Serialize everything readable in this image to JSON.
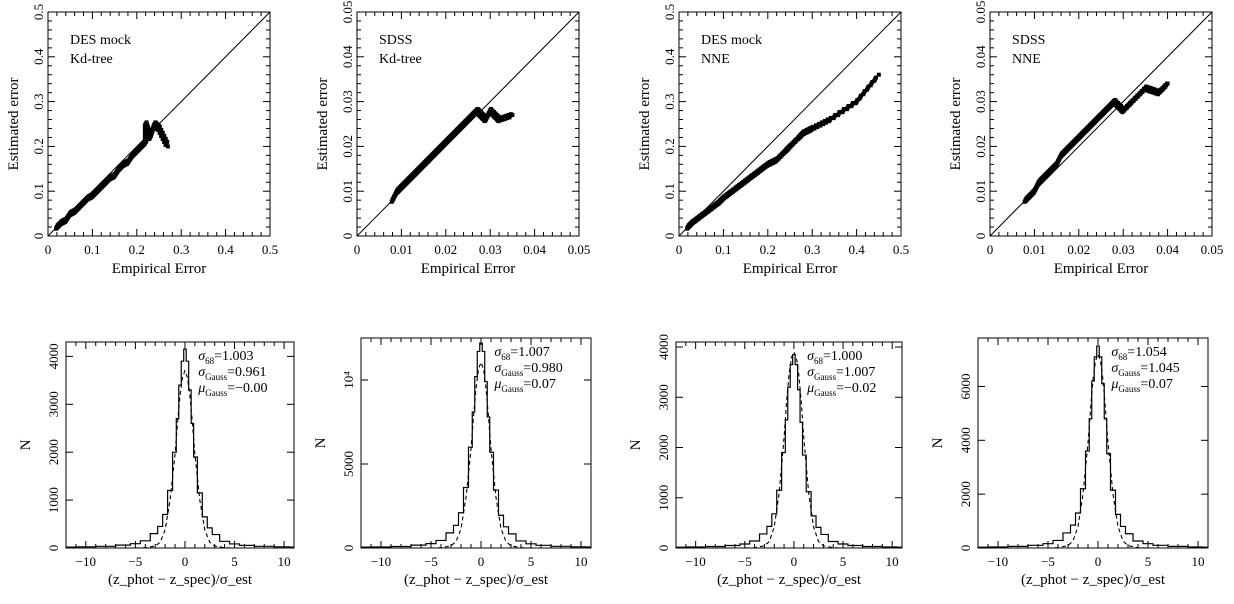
{
  "chart_data": [
    {
      "type": "scatter",
      "panel": "top-1",
      "annotation": [
        "DES mock",
        "Kd-tree"
      ],
      "xlabel": "Empirical Error",
      "ylabel": "Estimated error",
      "xlim": [
        0,
        0.5
      ],
      "ylim": [
        0,
        0.5
      ],
      "xticks": [
        "0",
        "0.1",
        "0.2",
        "0.3",
        "0.4",
        "0.5"
      ],
      "yticks": [
        "0",
        "0.1",
        "0.2",
        "0.3",
        "0.4",
        "0.5"
      ],
      "diagonal": true,
      "points": [
        [
          0.02,
          0.02
        ],
        [
          0.03,
          0.03
        ],
        [
          0.04,
          0.035
        ],
        [
          0.05,
          0.05
        ],
        [
          0.06,
          0.055
        ],
        [
          0.07,
          0.065
        ],
        [
          0.08,
          0.075
        ],
        [
          0.09,
          0.085
        ],
        [
          0.1,
          0.09
        ],
        [
          0.11,
          0.1
        ],
        [
          0.12,
          0.11
        ],
        [
          0.13,
          0.12
        ],
        [
          0.14,
          0.13
        ],
        [
          0.15,
          0.135
        ],
        [
          0.16,
          0.15
        ],
        [
          0.17,
          0.16
        ],
        [
          0.18,
          0.165
        ],
        [
          0.19,
          0.18
        ],
        [
          0.2,
          0.19
        ],
        [
          0.21,
          0.2
        ],
        [
          0.22,
          0.21
        ],
        [
          0.23,
          0.22
        ],
        [
          0.24,
          0.25
        ],
        [
          0.25,
          0.24
        ],
        [
          0.27,
          0.2
        ],
        [
          0.22,
          0.25
        ]
      ]
    },
    {
      "type": "scatter",
      "panel": "top-2",
      "annotation": [
        "SDSS",
        "Kd-tree"
      ],
      "xlabel": "Empirical Error",
      "ylabel": "Estimated error",
      "xlim": [
        0,
        0.05
      ],
      "ylim": [
        0,
        0.05
      ],
      "xticks": [
        "0",
        "0.01",
        "0.02",
        "0.03",
        "0.04",
        "0.05"
      ],
      "yticks": [
        "0",
        "0.01",
        "0.02",
        "0.03",
        "0.04",
        "0.05"
      ],
      "diagonal": true,
      "points": [
        [
          0.008,
          0.008
        ],
        [
          0.009,
          0.01
        ],
        [
          0.01,
          0.011
        ],
        [
          0.011,
          0.012
        ],
        [
          0.012,
          0.013
        ],
        [
          0.013,
          0.014
        ],
        [
          0.014,
          0.015
        ],
        [
          0.015,
          0.016
        ],
        [
          0.016,
          0.017
        ],
        [
          0.017,
          0.018
        ],
        [
          0.018,
          0.019
        ],
        [
          0.019,
          0.02
        ],
        [
          0.02,
          0.021
        ],
        [
          0.021,
          0.022
        ],
        [
          0.022,
          0.023
        ],
        [
          0.023,
          0.024
        ],
        [
          0.024,
          0.025
        ],
        [
          0.025,
          0.026
        ],
        [
          0.026,
          0.027
        ],
        [
          0.027,
          0.028
        ],
        [
          0.028,
          0.027
        ],
        [
          0.029,
          0.026
        ],
        [
          0.03,
          0.028
        ],
        [
          0.032,
          0.026
        ],
        [
          0.035,
          0.027
        ]
      ]
    },
    {
      "type": "scatter",
      "panel": "top-3",
      "annotation": [
        "DES mock",
        "NNE"
      ],
      "xlabel": "Empirical Error",
      "ylabel": "Estimated error",
      "xlim": [
        0,
        0.5
      ],
      "ylim": [
        0,
        0.5
      ],
      "xticks": [
        "0",
        "0.1",
        "0.2",
        "0.3",
        "0.4",
        "0.5"
      ],
      "yticks": [
        "0",
        "0.1",
        "0.2",
        "0.3",
        "0.4",
        "0.5"
      ],
      "diagonal": true,
      "points": [
        [
          0.02,
          0.02
        ],
        [
          0.03,
          0.03
        ],
        [
          0.05,
          0.045
        ],
        [
          0.07,
          0.06
        ],
        [
          0.09,
          0.075
        ],
        [
          0.1,
          0.085
        ],
        [
          0.12,
          0.1
        ],
        [
          0.14,
          0.115
        ],
        [
          0.16,
          0.13
        ],
        [
          0.18,
          0.145
        ],
        [
          0.2,
          0.16
        ],
        [
          0.22,
          0.17
        ],
        [
          0.24,
          0.19
        ],
        [
          0.25,
          0.2
        ],
        [
          0.27,
          0.22
        ],
        [
          0.3,
          0.24
        ],
        [
          0.34,
          0.26
        ],
        [
          0.4,
          0.3
        ],
        [
          0.45,
          0.36
        ],
        [
          0.28,
          0.23
        ]
      ]
    },
    {
      "type": "scatter",
      "panel": "top-4",
      "annotation": [
        "SDSS",
        "NNE"
      ],
      "xlabel": "Empirical Error",
      "ylabel": "Estimated error",
      "xlim": [
        0,
        0.05
      ],
      "ylim": [
        0,
        0.05
      ],
      "xticks": [
        "0",
        "0.01",
        "0.02",
        "0.03",
        "0.04",
        "0.05"
      ],
      "yticks": [
        "0",
        "0.01",
        "0.02",
        "0.03",
        "0.04",
        "0.05"
      ],
      "diagonal": true,
      "points": [
        [
          0.008,
          0.008
        ],
        [
          0.009,
          0.009
        ],
        [
          0.01,
          0.01
        ],
        [
          0.011,
          0.012
        ],
        [
          0.012,
          0.013
        ],
        [
          0.013,
          0.014
        ],
        [
          0.014,
          0.015
        ],
        [
          0.015,
          0.016
        ],
        [
          0.016,
          0.018
        ],
        [
          0.017,
          0.019
        ],
        [
          0.018,
          0.02
        ],
        [
          0.019,
          0.021
        ],
        [
          0.02,
          0.022
        ],
        [
          0.021,
          0.023
        ],
        [
          0.022,
          0.024
        ],
        [
          0.023,
          0.025
        ],
        [
          0.024,
          0.026
        ],
        [
          0.025,
          0.027
        ],
        [
          0.026,
          0.028
        ],
        [
          0.027,
          0.029
        ],
        [
          0.028,
          0.03
        ],
        [
          0.03,
          0.028
        ],
        [
          0.032,
          0.03
        ],
        [
          0.035,
          0.033
        ],
        [
          0.038,
          0.032
        ],
        [
          0.04,
          0.034
        ]
      ]
    },
    {
      "type": "line",
      "panel": "bottom-1",
      "xlabel": "(z_phot − z_spec)/σ_est",
      "ylabel": "N",
      "xlim": [
        -12,
        11
      ],
      "ylim": [
        0,
        4300
      ],
      "xticks": [
        "−10",
        "−5",
        "0",
        "5",
        "10"
      ],
      "yticks": [
        "0",
        "1000",
        "2000",
        "3000",
        "4000"
      ],
      "annotation": [
        {
          "label": "σ",
          "sub": "68",
          "value": "=1.003"
        },
        {
          "label": "σ",
          "sub": "Gauss",
          "value": "=0.961"
        },
        {
          "label": "μ",
          "sub": "Gauss",
          "value": "=−0.00"
        }
      ],
      "series": [
        {
          "style": "solid",
          "x": [
            -12,
            -10,
            -8,
            -6,
            -5,
            -4,
            -3,
            -2.5,
            -2,
            -1.5,
            -1,
            -0.75,
            -0.5,
            -0.25,
            0,
            0.25,
            0.5,
            0.75,
            1,
            1.5,
            2,
            2.5,
            3,
            4,
            5,
            6,
            8,
            10,
            11
          ],
          "values": [
            20,
            25,
            35,
            60,
            90,
            150,
            300,
            450,
            700,
            1200,
            2000,
            2700,
            3400,
            3900,
            4150,
            3900,
            3300,
            2600,
            1900,
            1150,
            650,
            420,
            280,
            140,
            85,
            55,
            35,
            25,
            20
          ]
        },
        {
          "style": "dashed",
          "x": [
            -12,
            -10,
            -8,
            -6,
            -5,
            -4,
            -3,
            -2.5,
            -2,
            -1.5,
            -1,
            -0.75,
            -0.5,
            -0.25,
            0,
            0.25,
            0.5,
            0.75,
            1,
            1.5,
            2,
            2.5,
            3,
            4,
            5,
            6,
            8,
            10,
            11
          ],
          "values": [
            0,
            0,
            0,
            0,
            0,
            5,
            40,
            120,
            380,
            1000,
            1960,
            2610,
            3180,
            3560,
            3700,
            3560,
            3180,
            2610,
            1960,
            1000,
            380,
            120,
            40,
            5,
            0,
            0,
            0,
            0,
            0
          ]
        }
      ]
    },
    {
      "type": "line",
      "panel": "bottom-2",
      "xlabel": "(z_phot − z_spec)/σ_est",
      "ylabel": "N",
      "xlim": [
        -12,
        11
      ],
      "ylim": [
        0,
        12500
      ],
      "xticks": [
        "−10",
        "−5",
        "0",
        "5",
        "10"
      ],
      "yticks": [
        "0",
        "5000",
        "10⁴"
      ],
      "annotation": [
        {
          "label": "σ",
          "sub": "68",
          "value": "=1.007"
        },
        {
          "label": "σ",
          "sub": "Gauss",
          "value": "=0.980"
        },
        {
          "label": "μ",
          "sub": "Gauss",
          "value": "=0.07"
        }
      ],
      "series": [
        {
          "style": "solid",
          "x": [
            -12,
            -10,
            -8,
            -6,
            -5,
            -4,
            -3,
            -2.5,
            -2,
            -1.5,
            -1,
            -0.75,
            -0.5,
            -0.25,
            0,
            0.25,
            0.5,
            0.75,
            1,
            1.5,
            2,
            2.5,
            3,
            4,
            5,
            6,
            8,
            10,
            11
          ],
          "values": [
            50,
            60,
            90,
            170,
            260,
            450,
            900,
            1350,
            2100,
            3600,
            6000,
            8100,
            10200,
            11700,
            12200,
            11700,
            9900,
            7800,
            5700,
            3450,
            1950,
            1260,
            840,
            420,
            250,
            160,
            100,
            70,
            60
          ]
        },
        {
          "style": "dashed",
          "x": [
            -12,
            -10,
            -8,
            -6,
            -5,
            -4,
            -3,
            -2.5,
            -2,
            -1.5,
            -1,
            -0.75,
            -0.5,
            -0.25,
            0,
            0.25,
            0.5,
            0.75,
            1,
            1.5,
            2,
            2.5,
            3,
            4,
            5,
            6,
            8,
            10,
            11
          ],
          "values": [
            0,
            0,
            0,
            0,
            0,
            15,
            130,
            380,
            1150,
            3000,
            5900,
            7800,
            9500,
            10650,
            11050,
            10650,
            9500,
            7800,
            5900,
            3000,
            1150,
            380,
            130,
            15,
            0,
            0,
            0,
            0,
            0
          ]
        }
      ]
    },
    {
      "type": "line",
      "panel": "bottom-3",
      "xlabel": "(z_phot − z_spec)/σ_est",
      "ylabel": "N",
      "xlim": [
        -12,
        11
      ],
      "ylim": [
        0,
        4100
      ],
      "xticks": [
        "−10",
        "−5",
        "0",
        "5",
        "10"
      ],
      "yticks": [
        "0",
        "1000",
        "2000",
        "3000",
        "4000"
      ],
      "annotation": [
        {
          "label": "σ",
          "sub": "68",
          "value": "=1.000"
        },
        {
          "label": "σ",
          "sub": "Gauss",
          "value": "=1.007"
        },
        {
          "label": "μ",
          "sub": "Gauss",
          "value": "=−0.02"
        }
      ],
      "series": [
        {
          "style": "solid",
          "x": [
            -12,
            -10,
            -8,
            -6,
            -5,
            -4,
            -3,
            -2.5,
            -2,
            -1.5,
            -1,
            -0.75,
            -0.5,
            -0.25,
            0,
            0.25,
            0.5,
            0.75,
            1,
            1.5,
            2,
            2.5,
            3,
            4,
            5,
            6,
            8,
            10,
            11
          ],
          "values": [
            15,
            20,
            30,
            50,
            80,
            140,
            280,
            430,
            680,
            1150,
            1900,
            2550,
            3200,
            3650,
            3850,
            3650,
            3150,
            2500,
            1850,
            1120,
            640,
            410,
            270,
            130,
            80,
            50,
            30,
            20,
            15
          ]
        },
        {
          "style": "dashed",
          "x": [
            -12,
            -10,
            -8,
            -6,
            -5,
            -4,
            -3,
            -2.5,
            -2,
            -1.5,
            -1,
            -0.75,
            -0.5,
            -0.25,
            0,
            0.25,
            0.5,
            0.75,
            1,
            1.5,
            2,
            2.5,
            3,
            4,
            5,
            6,
            8,
            10,
            11
          ],
          "values": [
            0,
            0,
            0,
            0,
            0,
            5,
            45,
            130,
            420,
            1100,
            2200,
            2900,
            3450,
            3790,
            3900,
            3790,
            3450,
            2900,
            2200,
            1100,
            420,
            130,
            45,
            5,
            0,
            0,
            0,
            0,
            0
          ]
        }
      ]
    },
    {
      "type": "line",
      "panel": "bottom-4",
      "xlabel": "(z_phot − z_spec)/σ_est",
      "ylabel": "N",
      "xlim": [
        -12,
        11
      ],
      "ylim": [
        0,
        7800
      ],
      "xticks": [
        "−10",
        "−5",
        "0",
        "5",
        "10"
      ],
      "yticks": [
        "0",
        "2000",
        "4000",
        "6000"
      ],
      "annotation": [
        {
          "label": "σ",
          "sub": "68",
          "value": "=1.054"
        },
        {
          "label": "σ",
          "sub": "Gauss",
          "value": "=1.045"
        },
        {
          "label": "μ",
          "sub": "Gauss",
          "value": "=0.07"
        }
      ],
      "series": [
        {
          "style": "solid",
          "x": [
            -12,
            -10,
            -8,
            -6,
            -5,
            -4,
            -3,
            -2.5,
            -2,
            -1.5,
            -1,
            -0.75,
            -0.5,
            -0.25,
            0,
            0.25,
            0.5,
            0.75,
            1,
            1.5,
            2,
            2.5,
            3,
            4,
            5,
            6,
            8,
            10,
            11
          ],
          "values": [
            30,
            40,
            60,
            100,
            160,
            280,
            560,
            850,
            1300,
            2200,
            3600,
            4800,
            6200,
            7100,
            7500,
            7100,
            6100,
            4800,
            3500,
            2150,
            1250,
            800,
            530,
            260,
            160,
            100,
            60,
            40,
            30
          ]
        },
        {
          "style": "dashed",
          "x": [
            -12,
            -10,
            -8,
            -6,
            -5,
            -4,
            -3,
            -2.5,
            -2,
            -1.5,
            -1,
            -0.75,
            -0.5,
            -0.25,
            0,
            0.25,
            0.5,
            0.75,
            1,
            1.5,
            2,
            2.5,
            3,
            4,
            5,
            6,
            8,
            10,
            11
          ],
          "values": [
            0,
            0,
            0,
            0,
            0,
            10,
            90,
            260,
            800,
            2000,
            3900,
            5150,
            6250,
            6950,
            7200,
            6950,
            6250,
            5150,
            3900,
            2000,
            800,
            260,
            90,
            10,
            0,
            0,
            0,
            0,
            0
          ]
        }
      ]
    }
  ]
}
